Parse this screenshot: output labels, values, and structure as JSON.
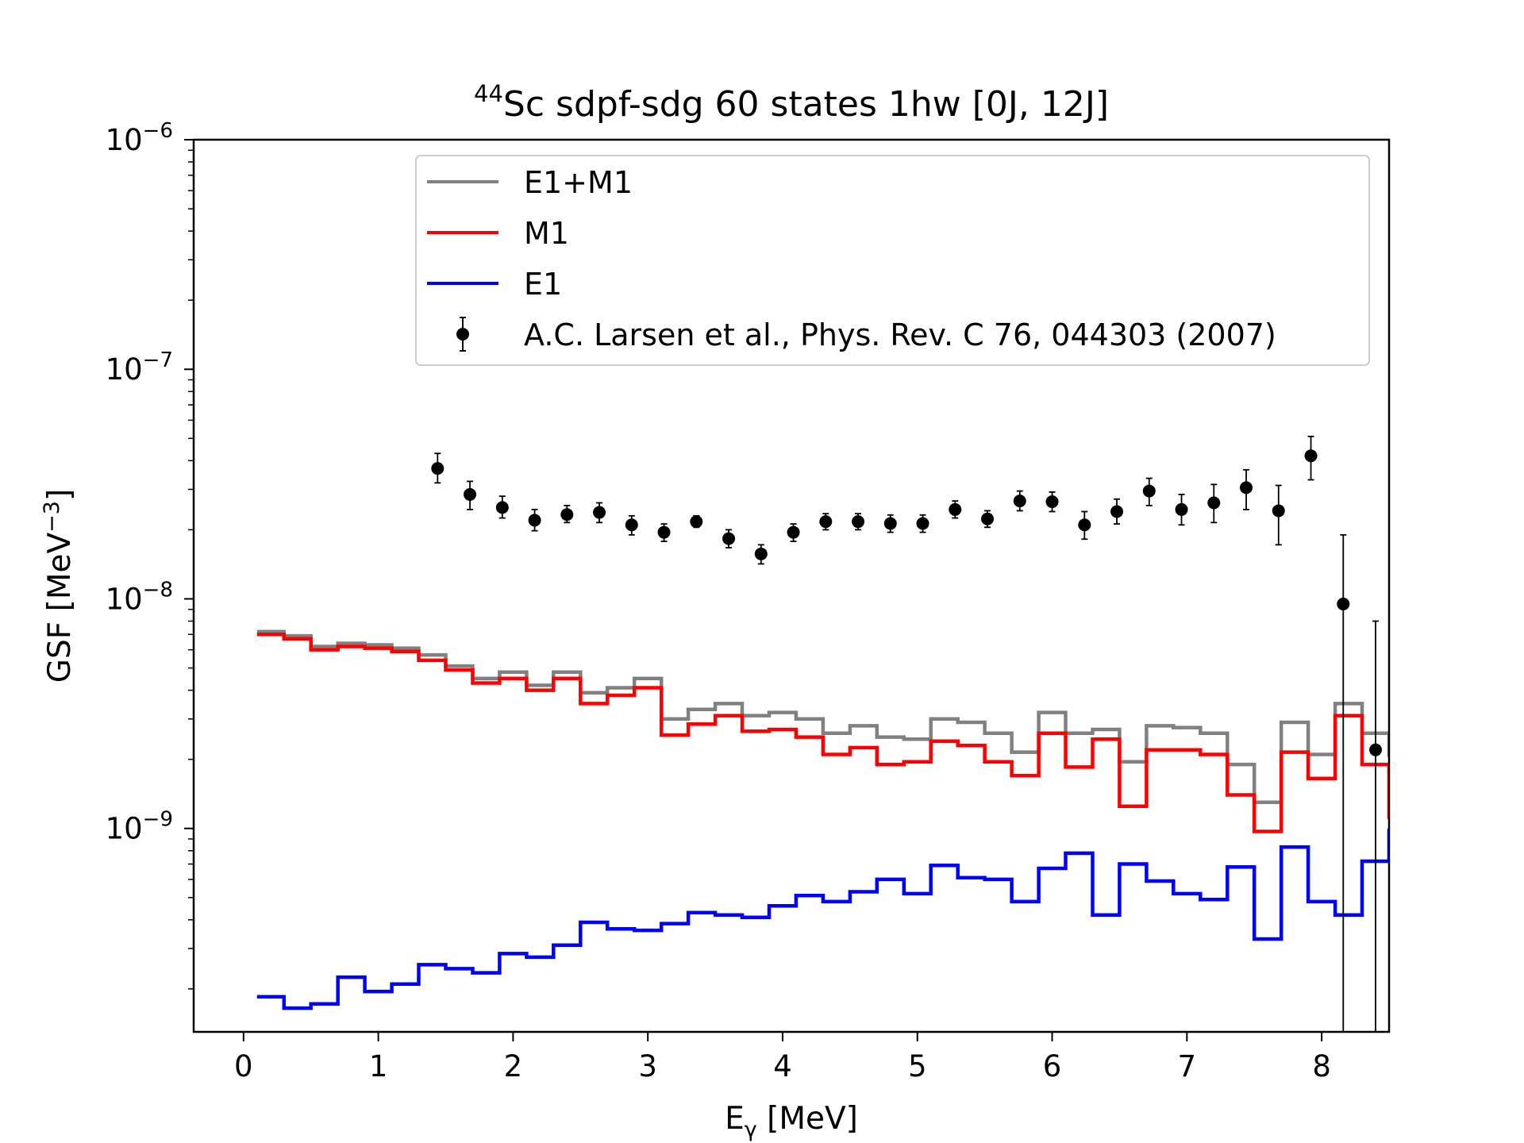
{
  "chart_data": {
    "type": "line",
    "title": {
      "isotope_mass": "44",
      "text": "Sc sdpf-sdg 60 states 1hw [0J, 12J]"
    },
    "xlabel": {
      "main": "E",
      "sub": "γ",
      "rest": " [MeV]"
    },
    "ylabel": {
      "main": "GSF [MeV",
      "sup": "−3",
      "rest": "]"
    },
    "xlim": [
      -0.37,
      8.5
    ],
    "ylim": [
      1.3e-10,
      1e-06
    ],
    "yscale": "log",
    "xticks": [
      {
        "value": 0,
        "label": "0"
      },
      {
        "value": 1,
        "label": "1"
      },
      {
        "value": 2,
        "label": "2"
      },
      {
        "value": 3,
        "label": "3"
      },
      {
        "value": 4,
        "label": "4"
      },
      {
        "value": 5,
        "label": "5"
      },
      {
        "value": 6,
        "label": "6"
      },
      {
        "value": 7,
        "label": "7"
      },
      {
        "value": 8,
        "label": "8"
      }
    ],
    "yticks": [
      {
        "value": 1e-09,
        "base": "10",
        "exp": "−9"
      },
      {
        "value": 1e-08,
        "base": "10",
        "exp": "−8"
      },
      {
        "value": 1e-07,
        "base": "10",
        "exp": "−7"
      },
      {
        "value": 1e-06,
        "base": "10",
        "exp": "−6"
      }
    ],
    "grid": false,
    "legend_position": "top-right",
    "bin_edges": [
      0.1,
      0.3,
      0.5,
      0.7,
      0.9,
      1.1,
      1.3,
      1.5,
      1.7,
      1.9,
      2.1,
      2.3,
      2.5,
      2.7,
      2.9,
      3.1,
      3.3,
      3.5,
      3.7,
      3.9,
      4.1,
      4.3,
      4.5,
      4.7,
      4.9,
      5.1,
      5.3,
      5.5,
      5.7,
      5.9,
      6.1,
      6.3,
      6.5,
      6.7,
      6.9,
      7.1,
      7.3,
      7.5,
      7.7,
      7.9,
      8.1,
      8.3,
      8.5
    ],
    "series": [
      {
        "name": "E1+M1",
        "color": "#808080",
        "style": "step",
        "values": [
          7.2e-09,
          6.9e-09,
          6.2e-09,
          6.4e-09,
          6.3e-09,
          6.1e-09,
          5.7e-09,
          5.1e-09,
          4.5e-09,
          4.8e-09,
          4.2e-09,
          4.8e-09,
          3.9e-09,
          4.1e-09,
          4.5e-09,
          3e-09,
          3.3e-09,
          3.5e-09,
          3.1e-09,
          3.2e-09,
          3e-09,
          2.6e-09,
          2.8e-09,
          2.5e-09,
          2.45e-09,
          3e-09,
          2.9e-09,
          2.6e-09,
          2.15e-09,
          3.2e-09,
          2.6e-09,
          2.7e-09,
          1.95e-09,
          2.8e-09,
          2.75e-09,
          2.6e-09,
          1.9e-09,
          1.3e-09,
          2.9e-09,
          2.1e-09,
          3.5e-09,
          2.6e-09,
          2.05e-09
        ]
      },
      {
        "name": "M1",
        "color": "#ff0000",
        "style": "step",
        "values": [
          7e-09,
          6.7e-09,
          6e-09,
          6.2e-09,
          6.1e-09,
          5.9e-09,
          5.4e-09,
          4.9e-09,
          4.3e-09,
          4.5e-09,
          4e-09,
          4.5e-09,
          3.5e-09,
          3.8e-09,
          4.1e-09,
          2.55e-09,
          2.85e-09,
          3.1e-09,
          2.65e-09,
          2.7e-09,
          2.5e-09,
          2.1e-09,
          2.25e-09,
          1.9e-09,
          1.95e-09,
          2.4e-09,
          2.3e-09,
          1.95e-09,
          1.7e-09,
          2.6e-09,
          1.85e-09,
          2.45e-09,
          1.25e-09,
          2.2e-09,
          2.2e-09,
          2.1e-09,
          1.4e-09,
          9.7e-10,
          2.15e-09,
          1.65e-09,
          3.1e-09,
          1.9e-09,
          1.1e-09
        ]
      },
      {
        "name": "E1",
        "color": "#0000ff",
        "style": "step",
        "values": [
          1.85e-10,
          1.65e-10,
          1.72e-10,
          2.25e-10,
          1.95e-10,
          2.1e-10,
          2.55e-10,
          2.45e-10,
          2.35e-10,
          2.85e-10,
          2.75e-10,
          3.1e-10,
          3.9e-10,
          3.65e-10,
          3.6e-10,
          3.85e-10,
          4.3e-10,
          4.2e-10,
          4.1e-10,
          4.6e-10,
          5.1e-10,
          4.8e-10,
          5.3e-10,
          6e-10,
          5.2e-10,
          6.9e-10,
          6.1e-10,
          6e-10,
          4.8e-10,
          6.7e-10,
          7.8e-10,
          4.2e-10,
          7e-10,
          5.9e-10,
          5.2e-10,
          4.9e-10,
          6.8e-10,
          3.3e-10,
          8.3e-10,
          4.8e-10,
          4.2e-10,
          7.2e-10,
          1e-09
        ]
      },
      {
        "name": "A.C. Larsen et al., Phys. Rev. C 76, 044303 (2007)",
        "color": "#000000",
        "style": "errorbar",
        "points": [
          {
            "x": 1.44,
            "y": 3.7e-08,
            "lo": 3.2e-08,
            "hi": 4.3e-08
          },
          {
            "x": 1.68,
            "y": 2.85e-08,
            "lo": 2.45e-08,
            "hi": 3.25e-08
          },
          {
            "x": 1.92,
            "y": 2.5e-08,
            "lo": 2.25e-08,
            "hi": 2.8e-08
          },
          {
            "x": 2.16,
            "y": 2.2e-08,
            "lo": 1.98e-08,
            "hi": 2.45e-08
          },
          {
            "x": 2.4,
            "y": 2.33e-08,
            "lo": 2.15e-08,
            "hi": 2.55e-08
          },
          {
            "x": 2.64,
            "y": 2.38e-08,
            "lo": 2.15e-08,
            "hi": 2.62e-08
          },
          {
            "x": 2.88,
            "y": 2.1e-08,
            "lo": 1.9e-08,
            "hi": 2.3e-08
          },
          {
            "x": 3.12,
            "y": 1.95e-08,
            "lo": 1.78e-08,
            "hi": 2.12e-08
          },
          {
            "x": 3.36,
            "y": 2.17e-08,
            "lo": 2.05e-08,
            "hi": 2.3e-08
          },
          {
            "x": 3.6,
            "y": 1.83e-08,
            "lo": 1.67e-08,
            "hi": 2e-08
          },
          {
            "x": 3.84,
            "y": 1.57e-08,
            "lo": 1.42e-08,
            "hi": 1.72e-08
          },
          {
            "x": 4.08,
            "y": 1.95e-08,
            "lo": 1.78e-08,
            "hi": 2.12e-08
          },
          {
            "x": 4.32,
            "y": 2.17e-08,
            "lo": 2e-08,
            "hi": 2.35e-08
          },
          {
            "x": 4.56,
            "y": 2.17e-08,
            "lo": 2e-08,
            "hi": 2.35e-08
          },
          {
            "x": 4.8,
            "y": 2.13e-08,
            "lo": 1.95e-08,
            "hi": 2.32e-08
          },
          {
            "x": 5.04,
            "y": 2.13e-08,
            "lo": 1.95e-08,
            "hi": 2.32e-08
          },
          {
            "x": 5.28,
            "y": 2.45e-08,
            "lo": 2.25e-08,
            "hi": 2.67e-08
          },
          {
            "x": 5.52,
            "y": 2.23e-08,
            "lo": 2.05e-08,
            "hi": 2.42e-08
          },
          {
            "x": 5.76,
            "y": 2.67e-08,
            "lo": 2.42e-08,
            "hi": 2.95e-08
          },
          {
            "x": 6.0,
            "y": 2.65e-08,
            "lo": 2.4e-08,
            "hi": 2.92e-08
          },
          {
            "x": 6.24,
            "y": 2.1e-08,
            "lo": 1.82e-08,
            "hi": 2.4e-08
          },
          {
            "x": 6.48,
            "y": 2.4e-08,
            "lo": 2.12e-08,
            "hi": 2.72e-08
          },
          {
            "x": 6.72,
            "y": 2.95e-08,
            "lo": 2.55e-08,
            "hi": 3.35e-08
          },
          {
            "x": 6.96,
            "y": 2.45e-08,
            "lo": 2.1e-08,
            "hi": 2.85e-08
          },
          {
            "x": 7.2,
            "y": 2.62e-08,
            "lo": 2.15e-08,
            "hi": 3.15e-08
          },
          {
            "x": 7.44,
            "y": 3.05e-08,
            "lo": 2.45e-08,
            "hi": 3.65e-08
          },
          {
            "x": 7.68,
            "y": 2.42e-08,
            "lo": 1.72e-08,
            "hi": 3.12e-08
          },
          {
            "x": 7.92,
            "y": 4.2e-08,
            "lo": 3.3e-08,
            "hi": 5.1e-08
          },
          {
            "x": 8.16,
            "y": 9.5e-09,
            "lo": 1.3e-10,
            "hi": 1.9e-08
          },
          {
            "x": 8.4,
            "y": 2.2e-09,
            "lo": 1.3e-10,
            "hi": 8e-09
          }
        ]
      }
    ]
  }
}
